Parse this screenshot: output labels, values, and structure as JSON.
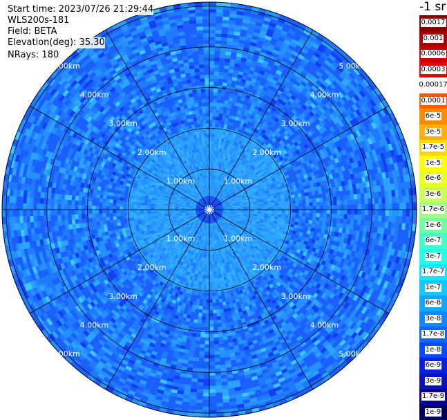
{
  "info": {
    "start_time": "Start time: 2023/07/26 21:29:44",
    "instrument": "WLS200s-181",
    "field": "Field: BETA",
    "elevation": "Elevation(deg): 35.30",
    "nrays": "NRays: 180"
  },
  "colorbar": {
    "unit": "-1 sr",
    "labels": [
      "0.0017",
      "0.001",
      "0.0006",
      "0.0003",
      "0.00017",
      "0.0001",
      "6e-5",
      "3e-5",
      "1.7e-5",
      "1e-5",
      "6e-6",
      "3e-6",
      "1.7e-6",
      "1e-6",
      "6e-7",
      "3e-7",
      "1.7e-7",
      "1e-7",
      "6e-8",
      "3e-8",
      "1.7e-8",
      "1e-8",
      "6e-9",
      "3e-9",
      "1.7e-9",
      "1e-9"
    ],
    "colors": [
      "#8a0000",
      "#aa0000",
      "#cc0000",
      "#ee0000",
      "#ffffff",
      "#ff5a00",
      "#ff8a00",
      "#ffb000",
      "#ffd800",
      "#ffff00",
      "#e8ff20",
      "#c8ff50",
      "#a0ff80",
      "#70ffa0",
      "#40ffc8",
      "#20ffe8",
      "#10e8ff",
      "#10c8ff",
      "#10a8ff",
      "#1088ff",
      "#1068ff",
      "#0848ff",
      "#0820e0",
      "#0810c0",
      "#080090",
      "#000060"
    ]
  },
  "ring_labels": [
    "1.00km",
    "2.00km",
    "3.00km",
    "4.00km",
    "5.00km"
  ],
  "rings_km": [
    1,
    2,
    3,
    4,
    5
  ],
  "max_range_km": 5.1,
  "spoke_angles_deg": [
    0,
    30,
    60,
    90,
    120,
    150,
    180,
    210,
    240,
    270,
    300,
    330
  ],
  "scan_colors": [
    "#1a5fff",
    "#1f7aff",
    "#2590ff",
    "#2ba3ff",
    "#33b3ff",
    "#3dc6ff",
    "#1040f0",
    "#4fd6ff"
  ]
}
